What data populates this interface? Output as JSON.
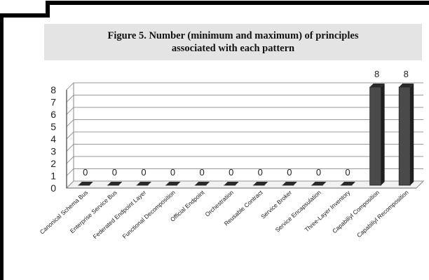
{
  "caption": "Figure 5. Number (minimum and maximum) of principles\nassociated with each pattern",
  "chart_data": {
    "type": "bar",
    "title": "Figure 5. Number (minimum and maximum) of principles associated with each pattern",
    "categories": [
      "Canonical Schema Bus",
      "Enterprise Service Bus",
      "Federated Endpoint Layer",
      "Functional Decomposition",
      "Official Endpoint",
      "Orchestration",
      "Reusable Contract",
      "Service Broker",
      "Service Encapsulation",
      "Three-Layer Inventory",
      "Capabiliyl Composition",
      "Capabiliyl Recomposition"
    ],
    "values": [
      0,
      0,
      0,
      0,
      0,
      0,
      0,
      0,
      0,
      0,
      8,
      8
    ],
    "data_labels": [
      "0",
      "0",
      "0",
      "0",
      "0",
      "0",
      "0",
      "0",
      "0",
      "0",
      "8",
      "8"
    ],
    "yticks": [
      "0",
      "1",
      "2",
      "3",
      "4",
      "5",
      "6",
      "7",
      "8"
    ],
    "ylim": [
      0,
      8
    ],
    "grid": true,
    "legend": "none",
    "bar_color": "#4a4a4a"
  }
}
